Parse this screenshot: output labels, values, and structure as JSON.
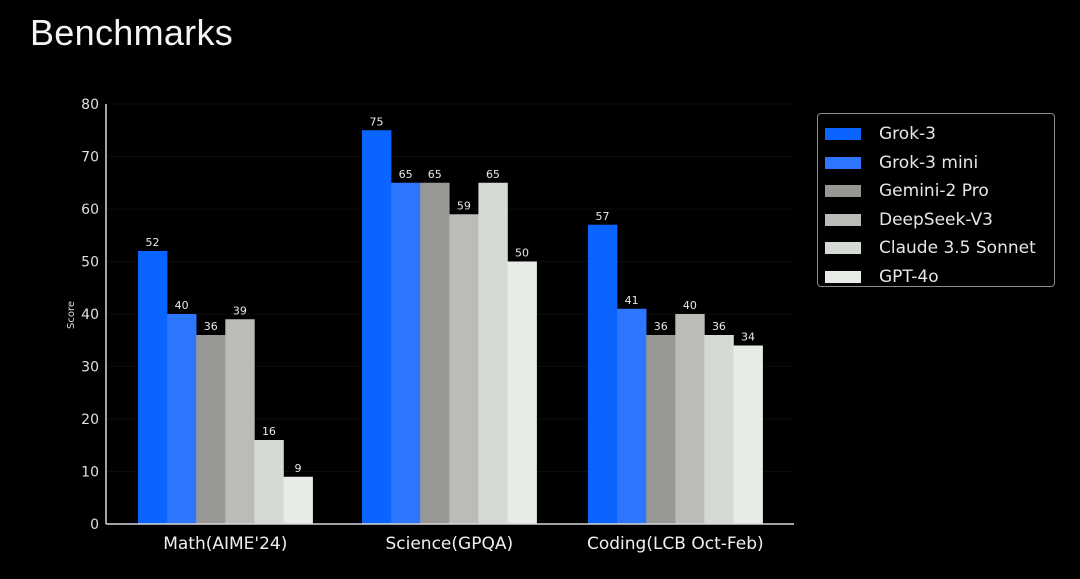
{
  "title": "Benchmarks",
  "chart_data": {
    "type": "bar",
    "title": "Benchmarks",
    "xlabel": "",
    "ylabel": "Score",
    "ylim": [
      0,
      80
    ],
    "yticks": [
      0,
      10,
      20,
      30,
      40,
      50,
      60,
      70,
      80
    ],
    "grid": false,
    "legend_position": "right",
    "categories": [
      "Math(AIME'24)",
      "Science(GPQA)",
      "Coding(LCB Oct-Feb)"
    ],
    "series": [
      {
        "name": "Grok-3",
        "color": "#0a64ff",
        "values": [
          52,
          75,
          57
        ]
      },
      {
        "name": "Grok-3 mini",
        "color": "#2f76ff",
        "values": [
          40,
          65,
          41
        ]
      },
      {
        "name": "Gemini-2 Pro",
        "color": "#979794",
        "values": [
          36,
          65,
          36
        ]
      },
      {
        "name": "DeepSeek-V3",
        "color": "#bbbcb8",
        "values": [
          39,
          59,
          40
        ]
      },
      {
        "name": "Claude 3.5 Sonnet",
        "color": "#d6dad5",
        "values": [
          16,
          65,
          36
        ]
      },
      {
        "name": "GPT-4o",
        "color": "#e8ece7",
        "values": [
          9,
          50,
          34
        ]
      }
    ]
  },
  "legend": {
    "items": [
      {
        "label": "Grok-3",
        "color": "#0a64ff"
      },
      {
        "label": "Grok-3 mini",
        "color": "#2f76ff"
      },
      {
        "label": "Gemini-2 Pro",
        "color": "#979794"
      },
      {
        "label": "DeepSeek-V3",
        "color": "#bbbcb8"
      },
      {
        "label": "Claude 3.5 Sonnet",
        "color": "#d6dad5"
      },
      {
        "label": "GPT-4o",
        "color": "#e8ece7"
      }
    ]
  }
}
